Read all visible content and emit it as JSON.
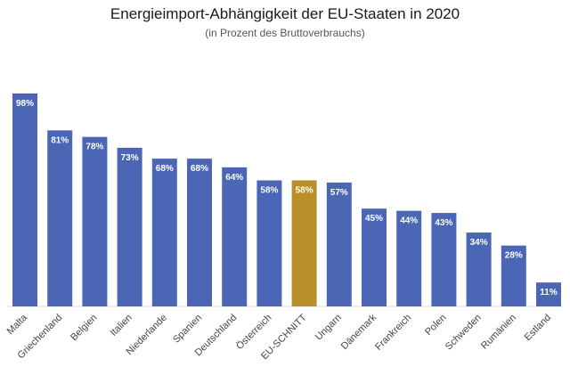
{
  "colors": {
    "bar": "#4a66b5",
    "highlight": "#b98f2a",
    "baseline": "#d9d9d9"
  },
  "chart_data": {
    "type": "bar",
    "title": "Energieimport-Abhängigkeit der EU-Staaten in 2020",
    "subtitle": "(in Prozent des Bruttoverbrauchs)",
    "xlabel": "",
    "ylabel": "",
    "ylim": [
      0,
      100
    ],
    "grid": false,
    "legend": "none",
    "highlight_category": "EU-SCHNITT",
    "categories": [
      "Malta",
      "Griechenland",
      "Belgien",
      "Italien",
      "Niederlande",
      "Spanien",
      "Deutschland",
      "Österreich",
      "EU-SCHNITT",
      "Ungarn",
      "Dänemark",
      "Frankreich",
      "Polen",
      "Schweden",
      "Rumänien",
      "Estland"
    ],
    "values": [
      98,
      81,
      78,
      73,
      68,
      68,
      64,
      58,
      58,
      57,
      45,
      44,
      43,
      34,
      28,
      11
    ],
    "data_labels": [
      "98%",
      "81%",
      "78%",
      "73%",
      "68%",
      "68%",
      "64%",
      "58%",
      "58%",
      "57%",
      "45%",
      "44%",
      "43%",
      "34%",
      "28%",
      "11%"
    ]
  }
}
